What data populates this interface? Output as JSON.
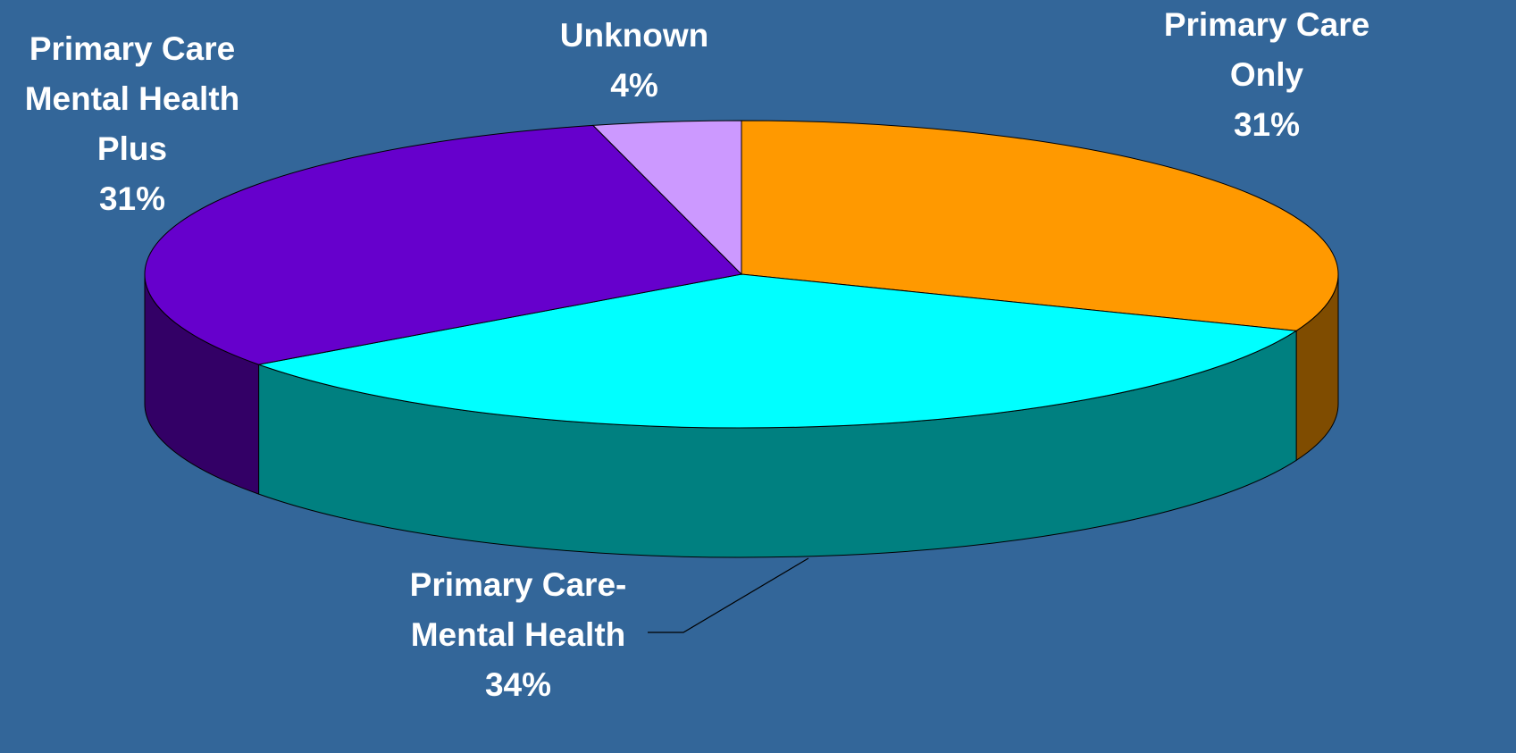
{
  "chart_data": {
    "type": "pie3d",
    "categories": [
      "Primary Care Only",
      "Primary Care-Mental Health",
      "Primary Care Mental Health Plus",
      "Unknown"
    ],
    "values": [
      31,
      34,
      31,
      4
    ],
    "value_labels": [
      "31%",
      "34%",
      "31%",
      "4%"
    ],
    "colors": [
      "#FF9900",
      "#00FFFF",
      "#6600CC",
      "#CC99FF"
    ],
    "side_colors": [
      "#7F4C00",
      "#008080",
      "#330066",
      "#66507F"
    ]
  }
}
